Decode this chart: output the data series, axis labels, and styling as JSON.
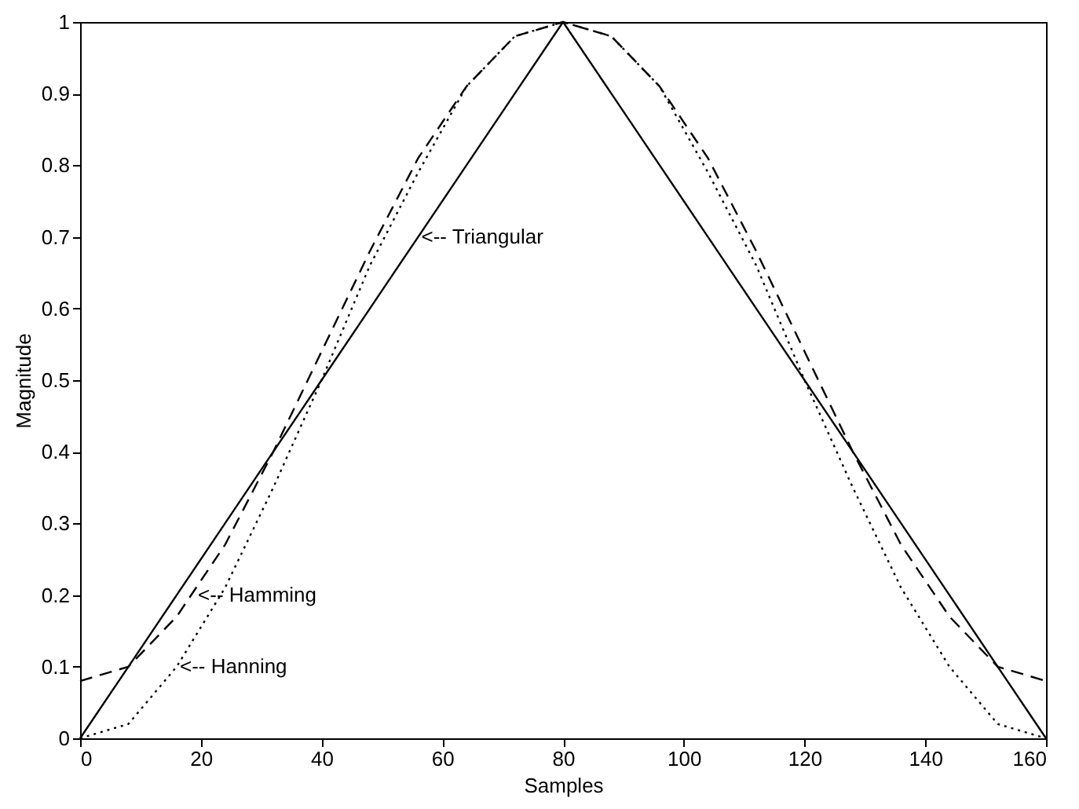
{
  "chart_data": {
    "type": "line",
    "xlabel": "Samples",
    "ylabel": "Magnitude",
    "x": [
      0,
      8,
      16,
      24,
      32,
      40,
      48,
      56,
      64,
      72,
      80,
      88,
      96,
      104,
      112,
      120,
      128,
      136,
      144,
      152,
      160
    ],
    "series": [
      {
        "color": "#000000",
        "line_style": "solid",
        "values": [
          0,
          0.1,
          0.2,
          0.3,
          0.4,
          0.5,
          0.6,
          0.7,
          0.8,
          0.9,
          1.0,
          0.9,
          0.8,
          0.7,
          0.6,
          0.5,
          0.4,
          0.3,
          0.2,
          0.1,
          0
        ]
      },
      {
        "color": "#000000",
        "line_style": "dashed",
        "values": [
          0.08,
          0.1,
          0.17,
          0.27,
          0.4,
          0.54,
          0.68,
          0.81,
          0.91,
          0.98,
          1.0,
          0.98,
          0.91,
          0.81,
          0.68,
          0.54,
          0.4,
          0.27,
          0.17,
          0.1,
          0.08
        ]
      },
      {
        "color": "#000000",
        "line_style": "dotted",
        "values": [
          0,
          0.02,
          0.1,
          0.21,
          0.35,
          0.5,
          0.66,
          0.79,
          0.91,
          0.98,
          1.0,
          0.98,
          0.91,
          0.79,
          0.66,
          0.5,
          0.35,
          0.21,
          0.1,
          0.02,
          0
        ]
      }
    ],
    "annotations": [
      {
        "text": "<-- Triangular",
        "x": 56,
        "y": 0.7
      },
      {
        "text": "<-- Hamming",
        "x": 19,
        "y": 0.2
      },
      {
        "text": "<-- Hanning",
        "x": 16,
        "y": 0.1
      }
    ],
    "xlim": [
      0,
      160
    ],
    "xticks": [
      0,
      20,
      40,
      60,
      80,
      100,
      120,
      140,
      160
    ],
    "ylim": [
      0,
      1
    ],
    "yticks": [
      0,
      0.1,
      0.2,
      0.3,
      0.4,
      0.5,
      0.6,
      0.7,
      0.8,
      0.9,
      1
    ],
    "grid": false
  }
}
